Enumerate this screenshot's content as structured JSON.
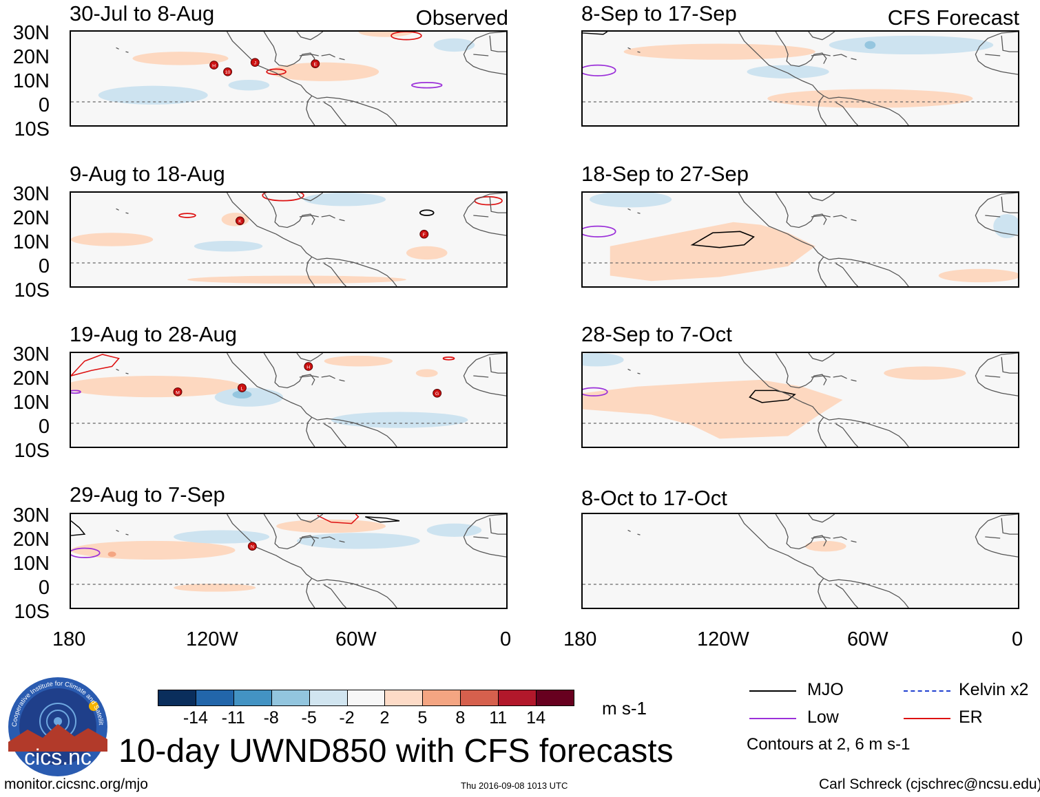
{
  "colors": {
    "land": "#555555",
    "map_bg": "#f7f7f7",
    "pos_light": "#fdd8c0",
    "neg_light": "#cde3f0",
    "neg_med": "#95c6df",
    "pos_med": "#f4a582",
    "mjo": "#000000",
    "low": "#9b30d9",
    "kelvin": "#2040d0",
    "er": "#dd1111"
  },
  "header": {
    "observed_label": "Observed",
    "forecast_label": "CFS Forecast"
  },
  "panels_left": [
    {
      "title": "30-Jul to 8-Aug"
    },
    {
      "title": "9-Aug to 18-Aug"
    },
    {
      "title": "19-Aug to 28-Aug"
    },
    {
      "title": "29-Aug to 7-Sep"
    }
  ],
  "panels_right": [
    {
      "title": "8-Sep to 17-Sep"
    },
    {
      "title": "18-Sep to 27-Sep"
    },
    {
      "title": "28-Sep to 7-Oct"
    },
    {
      "title": "8-Oct to 17-Oct"
    }
  ],
  "lat_labels": [
    "30N",
    "20N",
    "10N",
    "0",
    "10S"
  ],
  "lon_labels": [
    "180",
    "120W",
    "60W",
    "0"
  ],
  "colorbar": {
    "colors": [
      "#0a2e5c",
      "#2266aa",
      "#4393c3",
      "#92c5de",
      "#d1e5f0",
      "#f7f7f7",
      "#fddbc7",
      "#f4a582",
      "#d6604d",
      "#b2182b",
      "#67001f"
    ],
    "tick_labels": [
      "-14",
      "-11",
      "-8",
      "-5",
      "-2",
      "2",
      "5",
      "8",
      "11",
      "14"
    ],
    "units": "m s-1"
  },
  "legend": {
    "items": [
      {
        "name": "MJO",
        "color": "#000000",
        "style": "solid"
      },
      {
        "name": "Kelvin x2",
        "color": "#2040d0",
        "style": "dashed"
      },
      {
        "name": "Low",
        "color": "#9b30d9",
        "style": "solid"
      },
      {
        "name": "ER",
        "color": "#dd1111",
        "style": "solid"
      }
    ],
    "contours_note": "Contours at 2, 6 m s-1"
  },
  "logo": {
    "text": "cics.nc",
    "ring_text": "Cooperative Institute for Climate and Satellites"
  },
  "main_title": "10-day UWND850 with CFS forecasts",
  "footer": {
    "url": "monitor.cicsnc.org/mjo",
    "timestamp": "Thu 2016-09-08 1013 UTC",
    "credit": "Carl Schreck (cjschrec@ncsu.edu)"
  },
  "storms": [
    {
      "panel": 0,
      "label": "H"
    },
    {
      "panel": 0,
      "label": "10"
    },
    {
      "panel": 0,
      "label": "J"
    },
    {
      "panel": 0,
      "label": "E"
    },
    {
      "panel": 1,
      "label": "K"
    },
    {
      "panel": 1,
      "label": "F"
    },
    {
      "panel": 2,
      "label": "M"
    },
    {
      "panel": 2,
      "label": "L"
    },
    {
      "panel": 2,
      "label": "H"
    },
    {
      "panel": 2,
      "label": "G"
    },
    {
      "panel": 3,
      "label": "N"
    }
  ]
}
